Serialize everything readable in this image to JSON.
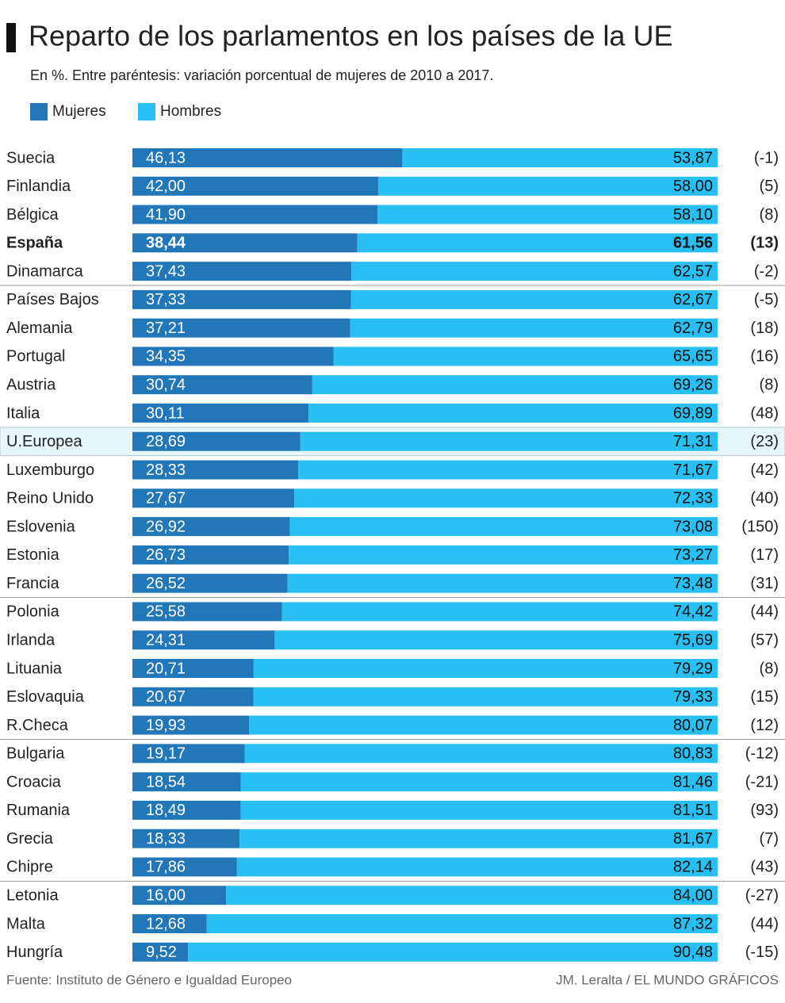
{
  "chart_data": {
    "type": "stacked-bar",
    "title": "Reparto de los parlamentos en los países de la UE",
    "subtitle": "En %. Entre paréntesis: variación porcentual de mujeres de 2010 a 2017.",
    "categories": [
      "Suecia",
      "Finlandia",
      "Bélgica",
      "España",
      "Dinamarca",
      "Países Bajos",
      "Alemania",
      "Portugal",
      "Austria",
      "Italia",
      "U.Europea",
      "Luxemburgo",
      "Reino Unido",
      "Eslovenia",
      "Estonia",
      "Francia",
      "Polonia",
      "Irlanda",
      "Lituania",
      "Eslovaquia",
      "R.Checa",
      "Bulgaria",
      "Croacia",
      "Rumania",
      "Grecia",
      "Chipre",
      "Letonia",
      "Malta",
      "Hungría"
    ],
    "series": [
      {
        "name": "Mujeres",
        "color": "#2277b8",
        "values": [
          46.13,
          42.0,
          41.9,
          38.44,
          37.43,
          37.33,
          37.21,
          34.35,
          30.74,
          30.11,
          28.69,
          28.33,
          27.67,
          26.92,
          26.73,
          26.52,
          25.58,
          24.31,
          20.71,
          20.67,
          19.93,
          19.17,
          18.54,
          18.49,
          18.33,
          17.86,
          16.0,
          12.68,
          9.52
        ],
        "value_labels": [
          "46,13",
          "42,00",
          "41,90",
          "38,44",
          "37,43",
          "37,33",
          "37,21",
          "34,35",
          "30,74",
          "30,11",
          "28,69",
          "28,33",
          "27,67",
          "26,92",
          "26,73",
          "26,52",
          "25,58",
          "24,31",
          "20,71",
          "20,67",
          "19,93",
          "19,17",
          "18,54",
          "18,49",
          "18,33",
          "17,86",
          "16,00",
          "12,68",
          "9,52"
        ]
      },
      {
        "name": "Hombres",
        "color": "#29bff2",
        "values": [
          53.87,
          58.0,
          58.1,
          61.56,
          62.57,
          62.67,
          62.79,
          65.65,
          69.26,
          69.89,
          71.31,
          71.67,
          72.33,
          73.08,
          73.27,
          73.48,
          74.42,
          75.69,
          79.29,
          79.33,
          80.07,
          80.83,
          81.46,
          81.51,
          81.67,
          82.14,
          84.0,
          87.32,
          90.48
        ],
        "value_labels": [
          "53,87",
          "58,00",
          "58,10",
          "61,56",
          "62,57",
          "62,67",
          "62,79",
          "65,65",
          "69,26",
          "69,89",
          "71,31",
          "71,67",
          "72,33",
          "73,08",
          "73,27",
          "73,48",
          "74,42",
          "75,69",
          "79,29",
          "79,33",
          "80,07",
          "80,83",
          "81,46",
          "81,51",
          "81,67",
          "82,14",
          "84,00",
          "87,32",
          "90,48"
        ]
      }
    ],
    "variation_labels": [
      "(-1)",
      "(5)",
      "(8)",
      "(13)",
      "(-2)",
      "(-5)",
      "(18)",
      "(16)",
      "(8)",
      "(48)",
      "(23)",
      "(42)",
      "(40)",
      "(150)",
      "(17)",
      "(31)",
      "(44)",
      "(57)",
      "(8)",
      "(15)",
      "(12)",
      "(-12)",
      "(-21)",
      "(93)",
      "(7)",
      "(43)",
      "(-27)",
      "(44)",
      "(-15)"
    ],
    "xlim": [
      0,
      100
    ],
    "bold_category": 3,
    "highlight_category": 10,
    "source": "Fuente: Instituto de Género e Igualdad Europeo",
    "credit": "JM. Leralta / EL MUNDO GRÁFICOS"
  }
}
